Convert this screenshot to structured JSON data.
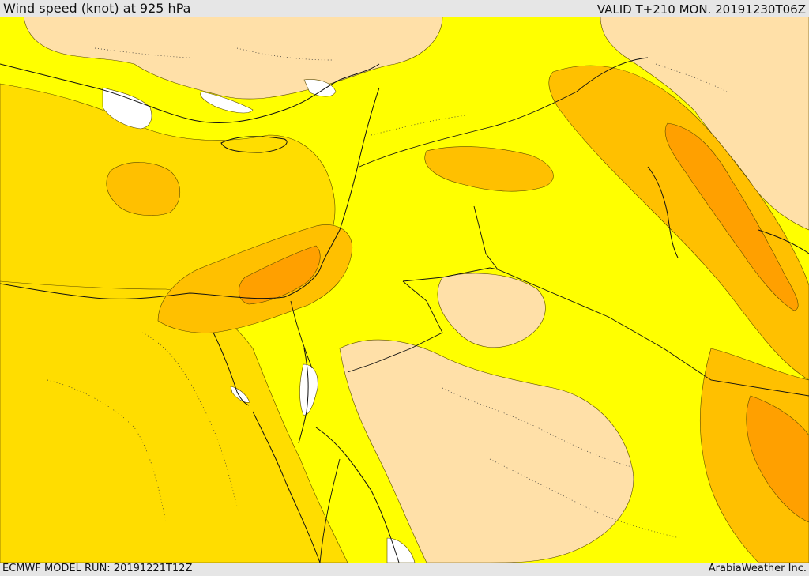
{
  "header": {
    "title": "Wind speed (knot) at 925 hPa",
    "valid": "VALID T+210 MON. 20191230T06Z"
  },
  "footer": {
    "model_run": "ECMWF MODEL RUN: 20191221T12Z",
    "credit": "ArabiaWeather Inc."
  },
  "map": {
    "field": "wind speed",
    "level_hpa": 925,
    "unit": "knot",
    "colors": {
      "calm": "#ffffff",
      "light": "#ffe0a8",
      "low": "#ffff00",
      "moderate": "#ffdd00",
      "strong": "#ffc000",
      "strongest": "#ffa000",
      "border": "#111111"
    }
  }
}
